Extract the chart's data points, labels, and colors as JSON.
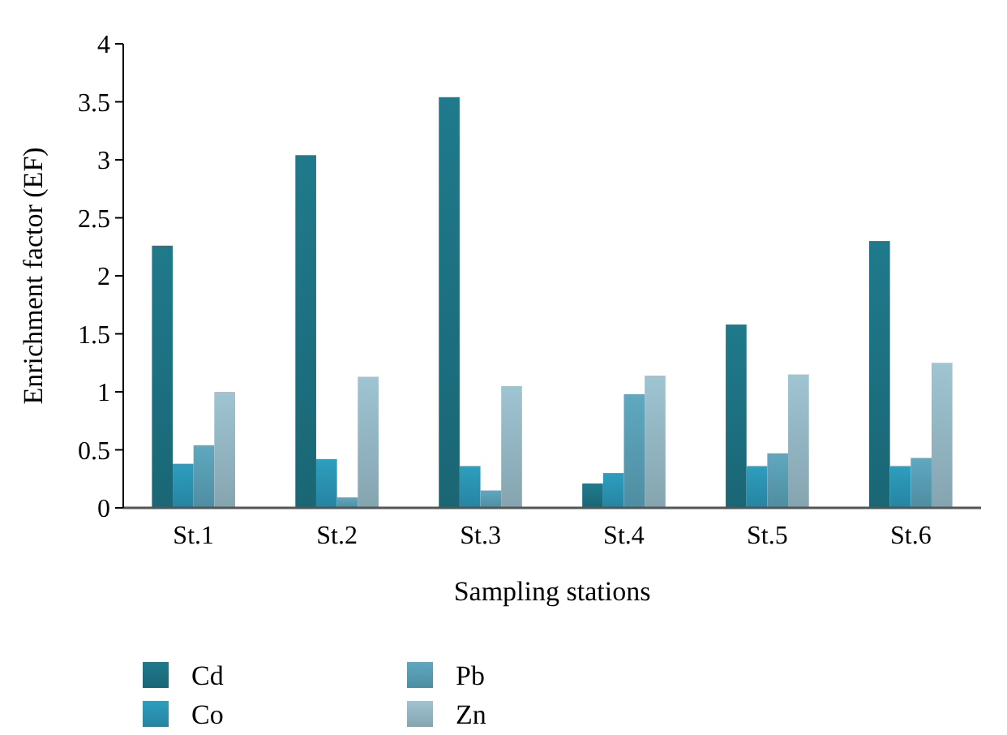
{
  "chart_data": {
    "type": "bar",
    "xlabel": "Sampling stations",
    "ylabel": "Enrichment factor (EF)",
    "categories": [
      "St.1",
      "St.2",
      "St.3",
      "St.4",
      "St.5",
      "St.6"
    ],
    "series": [
      {
        "name": "Cd",
        "color": "#1f7a8c",
        "values": [
          2.26,
          3.04,
          3.54,
          0.21,
          1.58,
          2.3
        ]
      },
      {
        "name": "Co",
        "color": "#2e9ebf",
        "values": [
          0.38,
          0.42,
          0.36,
          0.3,
          0.36,
          0.36
        ]
      },
      {
        "name": "Pb",
        "color": "#5fa8c0",
        "values": [
          0.54,
          0.09,
          0.15,
          0.98,
          0.47,
          0.43
        ]
      },
      {
        "name": "Zn",
        "color": "#9fc4d2",
        "values": [
          1.0,
          1.13,
          1.05,
          1.14,
          1.15,
          1.25
        ]
      }
    ],
    "ylim": [
      0,
      4
    ],
    "yticks": [
      0,
      0.5,
      1,
      1.5,
      2,
      2.5,
      3,
      3.5,
      4
    ],
    "grid": false,
    "legend": "bottom"
  }
}
